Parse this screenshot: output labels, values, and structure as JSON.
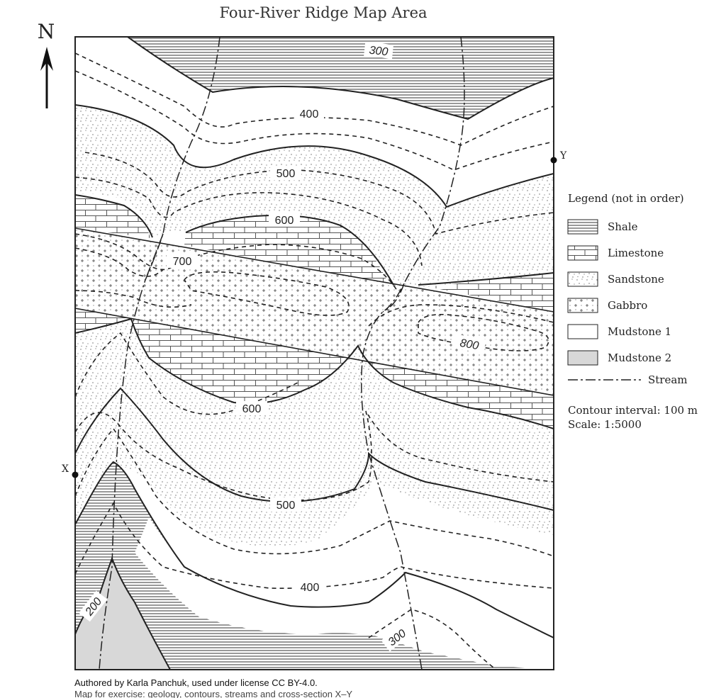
{
  "title": "Four-River Ridge Map Area",
  "north_label": "N",
  "points": {
    "x": "X",
    "y": "Y"
  },
  "contours": [
    {
      "label": "200",
      "value": 200
    },
    {
      "label": "300",
      "value": 300
    },
    {
      "label": "400",
      "value": 400
    },
    {
      "label": "500",
      "value": 500
    },
    {
      "label": "600",
      "value": 600
    },
    {
      "label": "700",
      "value": 700
    },
    {
      "label": "800",
      "value": 800
    }
  ],
  "legend": {
    "title": "Legend (not in order)",
    "items": [
      {
        "label": "Shale",
        "pattern": "horizontal-lines"
      },
      {
        "label": "Limestone",
        "pattern": "brick"
      },
      {
        "label": "Sandstone",
        "pattern": "stipple"
      },
      {
        "label": "Gabbro",
        "pattern": "plus-signs"
      },
      {
        "label": "Mudstone 1",
        "pattern": "blank"
      },
      {
        "label": "Mudstone 2",
        "pattern": "grey"
      }
    ],
    "stream_label": "Stream",
    "contour_interval": "Contour interval: 100 m",
    "scale": "Scale: 1:5000"
  },
  "colors": {
    "line": "#222222",
    "mudstone2": "#d8d8d8",
    "background": "#ffffff"
  },
  "attribution": "Authored by Karla Panchuk, used under license CC BY-4.0.",
  "attribution_line2": "Map for exercise: geology, contours, streams and cross-section X–Y"
}
